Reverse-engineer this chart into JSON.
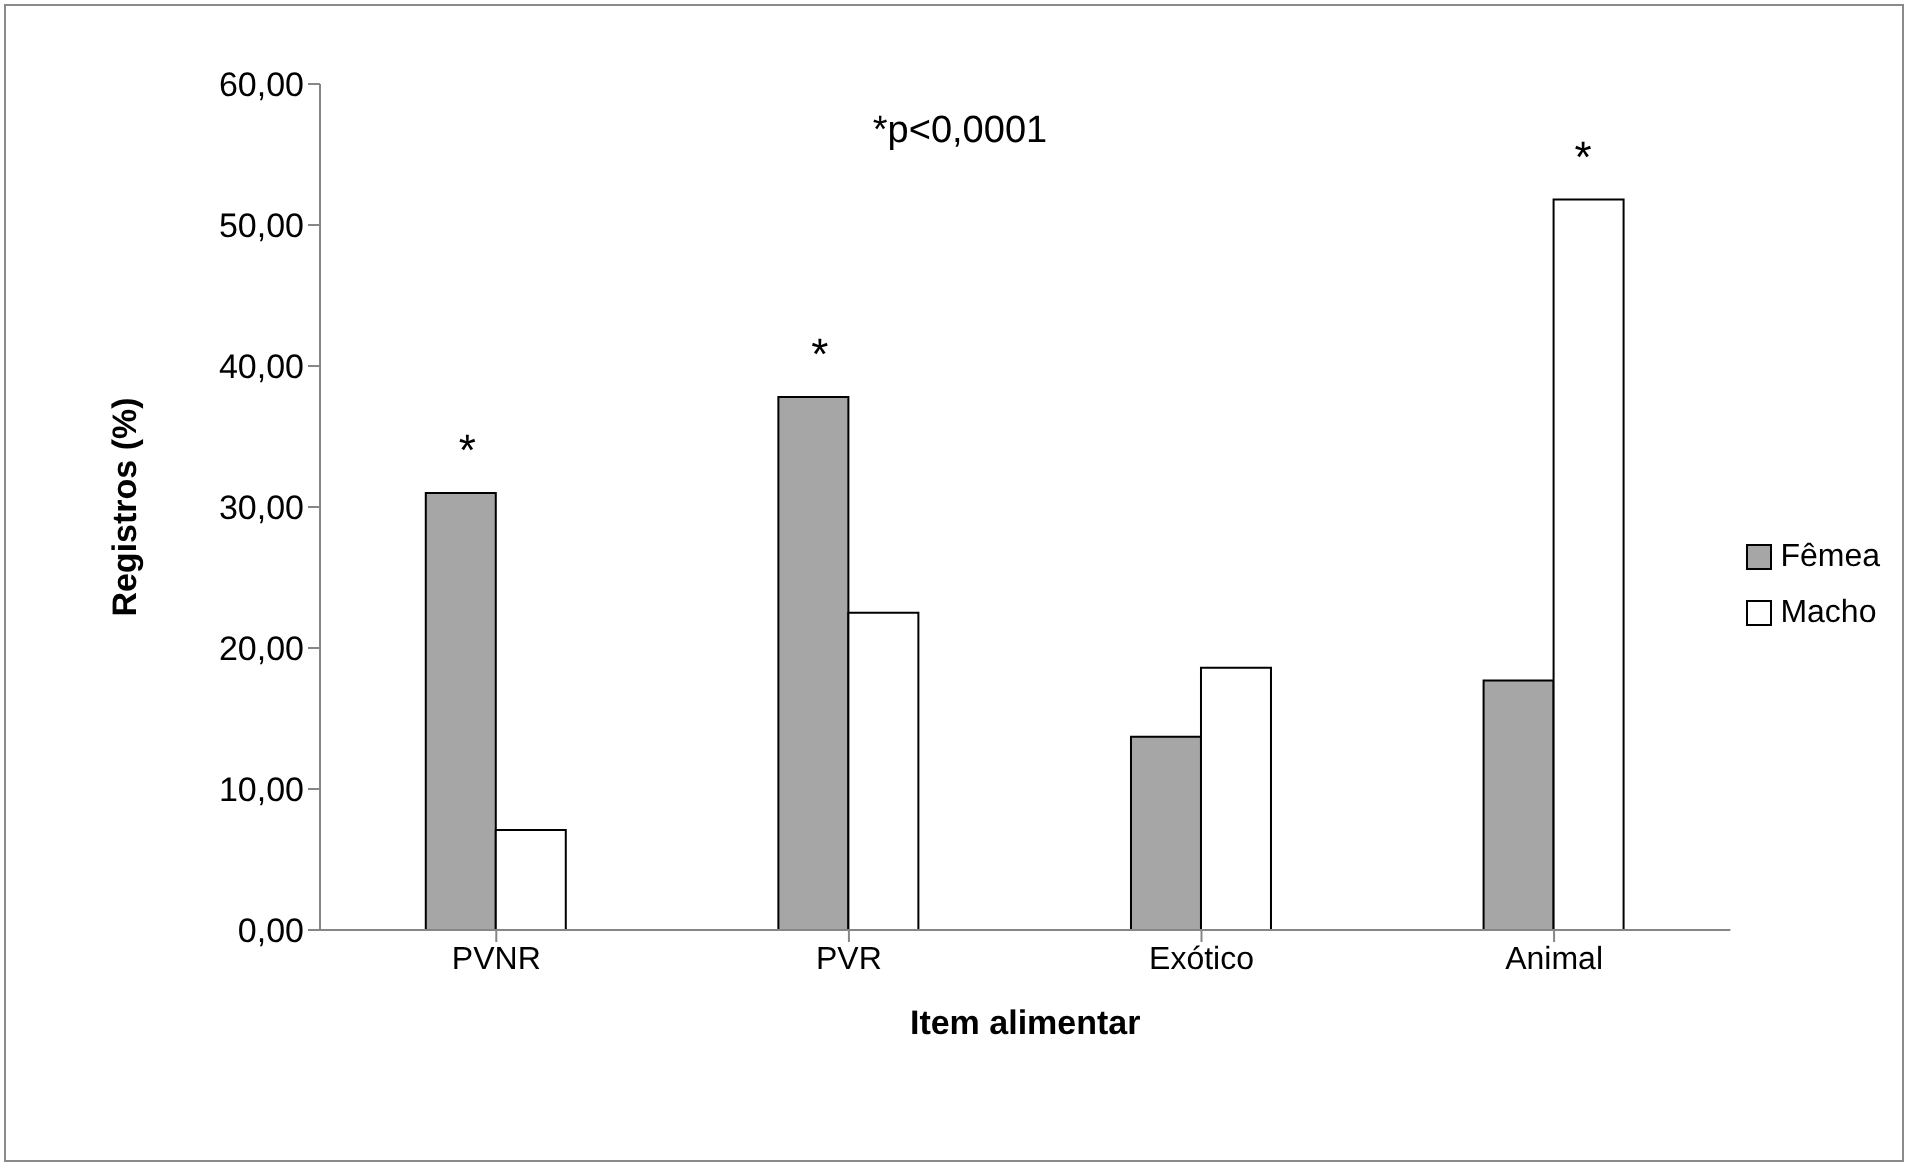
{
  "chart_data": {
    "type": "bar",
    "xlabel": "Item alimentar",
    "ylabel": "Registros (%)",
    "categories": [
      "PVNR",
      "PVR",
      "Exótico",
      "Animal"
    ],
    "series": [
      {
        "name": "Fêmea",
        "color": "#a6a6a6",
        "values": [
          31.0,
          37.8,
          13.7,
          17.7
        ]
      },
      {
        "name": "Macho",
        "color": "#ffffff",
        "values": [
          7.1,
          22.5,
          18.6,
          51.8
        ]
      }
    ],
    "ylim": [
      0,
      60
    ],
    "yticks": [
      {
        "value": 0,
        "label": "0,00"
      },
      {
        "value": 10,
        "label": "10,00"
      },
      {
        "value": 20,
        "label": "20,00"
      },
      {
        "value": 30,
        "label": "30,00"
      },
      {
        "value": 40,
        "label": "40,00"
      },
      {
        "value": 50,
        "label": "50,00"
      },
      {
        "value": 60,
        "label": "60,00"
      }
    ],
    "grid": false,
    "legend": "right",
    "annotations": [
      "*p<0,0001",
      {
        "text": "*",
        "x": "PVNR",
        "y": 31.0
      },
      {
        "text": "*",
        "x": "PVR",
        "y": 37.8
      },
      {
        "text": "*",
        "x": "Animal",
        "y": 51.8
      }
    ]
  }
}
